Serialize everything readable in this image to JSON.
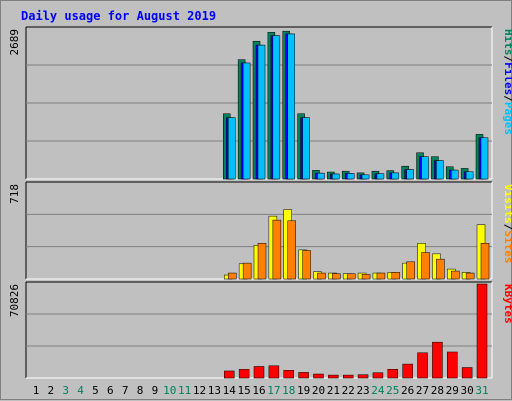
{
  "chart_data": {
    "type": "bar",
    "title": "Daily usage for August 2019",
    "categories": [
      "1",
      "2",
      "3",
      "4",
      "5",
      "6",
      "7",
      "8",
      "9",
      "10",
      "11",
      "12",
      "13",
      "14",
      "15",
      "16",
      "17",
      "18",
      "19",
      "20",
      "21",
      "22",
      "23",
      "24",
      "25",
      "26",
      "27",
      "28",
      "29",
      "30",
      "31"
    ],
    "weekend_days": [
      "3",
      "4",
      "10",
      "11",
      "17",
      "18",
      "24",
      "25",
      "31"
    ],
    "colors": {
      "hits": "#00805C",
      "files": "#0000FF",
      "pages": "#00C0FF",
      "visits": "#FFFF00",
      "sites": "#FF8000",
      "kbytes": "#FF0000",
      "title": "#0000FF",
      "weekend_tick": "#00805C",
      "weekday_tick": "#000000"
    },
    "panels": [
      {
        "id": "hits",
        "max_label": "2689",
        "ylim": [
          0,
          2689
        ],
        "side_label": [
          {
            "text": "Pages",
            "color": "#00C0FF"
          },
          {
            "text": "/",
            "color": "#000000"
          },
          {
            "text": "Files",
            "color": "#0000FF"
          },
          {
            "text": "/",
            "color": "#000000"
          },
          {
            "text": "Hits",
            "color": "#00805C"
          }
        ],
        "series": [
          {
            "name": "Hits",
            "color": "#00805C",
            "values": [
              0,
              0,
              0,
              0,
              0,
              0,
              0,
              0,
              0,
              0,
              0,
              0,
              0,
              1170,
              2140,
              2470,
              2630,
              2650,
              1170,
              155,
              125,
              140,
              110,
              140,
              150,
              230,
              470,
              400,
              220,
              190,
              800
            ]
          },
          {
            "name": "Files",
            "color": "#0000FF",
            "values": [
              0,
              0,
              0,
              0,
              0,
              0,
              0,
              0,
              0,
              0,
              0,
              0,
              0,
              1100,
              2080,
              2400,
              2570,
              2600,
              1100,
              105,
              90,
              100,
              75,
              95,
              110,
              170,
              400,
              330,
              160,
              130,
              740
            ]
          },
          {
            "name": "Pages",
            "color": "#00C0FF",
            "values": [
              0,
              0,
              0,
              0,
              0,
              0,
              0,
              0,
              0,
              0,
              0,
              0,
              0,
              1100,
              2080,
              2400,
              2570,
              2600,
              1100,
              105,
              90,
              100,
              75,
              95,
              110,
              170,
              400,
              330,
              160,
              130,
              740
            ]
          }
        ]
      },
      {
        "id": "visits",
        "max_label": "718",
        "ylim": [
          0,
          718
        ],
        "side_label": [
          {
            "text": "Sites",
            "color": "#FF8000"
          },
          {
            "text": "/",
            "color": "#000000"
          },
          {
            "text": "Visits",
            "color": "#FFFF00"
          }
        ],
        "series": [
          {
            "name": "Visits",
            "color": "#FFFF00",
            "values": [
              0,
              0,
              0,
              0,
              0,
              0,
              0,
              0,
              0,
              0,
              0,
              0,
              0,
              30,
              115,
              255,
              475,
              525,
              220,
              55,
              45,
              40,
              45,
              45,
              50,
              120,
              270,
              190,
              75,
              50,
              410
            ]
          },
          {
            "name": "Sites",
            "color": "#FF8000",
            "values": [
              0,
              0,
              0,
              0,
              0,
              0,
              0,
              0,
              0,
              0,
              0,
              0,
              0,
              45,
              120,
              270,
              445,
              440,
              215,
              45,
              40,
              40,
              35,
              45,
              50,
              130,
              200,
              150,
              60,
              45,
              270
            ]
          }
        ]
      },
      {
        "id": "kbytes",
        "max_label": "70826",
        "ylim": [
          0,
          70826
        ],
        "side_label": [
          {
            "text": "KBytes",
            "color": "#FF0000"
          }
        ],
        "series": [
          {
            "name": "KBytes",
            "color": "#FF0000",
            "values": [
              0,
              0,
              0,
              0,
              0,
              0,
              0,
              0,
              0,
              0,
              0,
              0,
              0,
              5300,
              6500,
              8700,
              9200,
              5800,
              4200,
              3000,
              2200,
              2200,
              2500,
              4000,
              6600,
              10500,
              19000,
              27000,
              19600,
              7900,
              70826
            ]
          }
        ]
      }
    ]
  }
}
